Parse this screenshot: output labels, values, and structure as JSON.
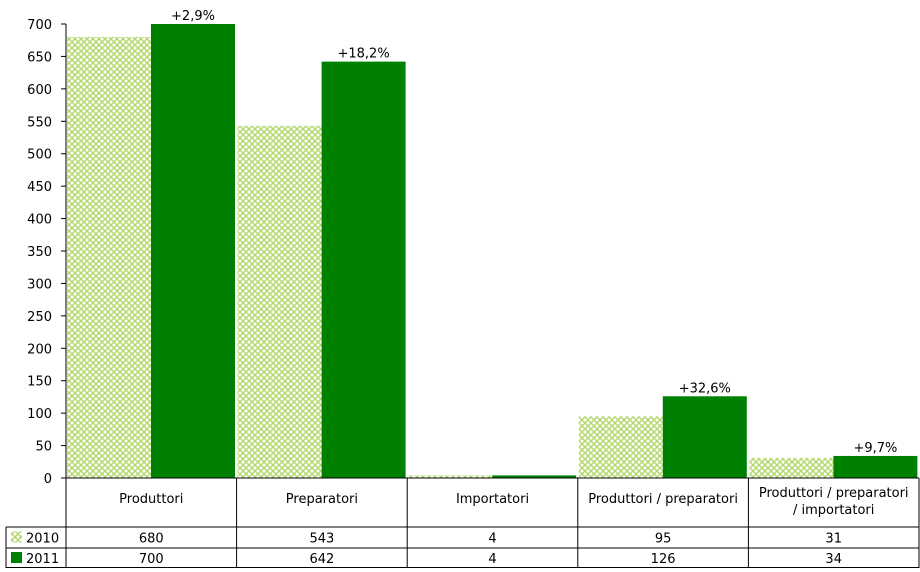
{
  "chart_data": {
    "type": "bar",
    "categories": [
      "Produttori",
      "Preparatori",
      "Importatori",
      "Produttori / preparatori",
      "Produttori / preparatori / importatori"
    ],
    "series": [
      {
        "name": "2010",
        "values": [
          680,
          543,
          4,
          95,
          31
        ],
        "color": "#c5e08a",
        "pattern": "crosshatch"
      },
      {
        "name": "2011",
        "values": [
          700,
          642,
          4,
          126,
          34
        ],
        "color": "#008000",
        "pattern": "solid"
      }
    ],
    "change_labels": [
      "+2,9%",
      "+18,2%",
      "",
      "+32,6%",
      "+9,7%"
    ],
    "ylim": [
      0,
      700
    ],
    "yticks": [
      0,
      50,
      100,
      150,
      200,
      250,
      300,
      350,
      400,
      450,
      500,
      550,
      600,
      650,
      700
    ],
    "grid": false,
    "legend": "data-table-rows",
    "title": "",
    "xlabel": "",
    "ylabel": ""
  }
}
